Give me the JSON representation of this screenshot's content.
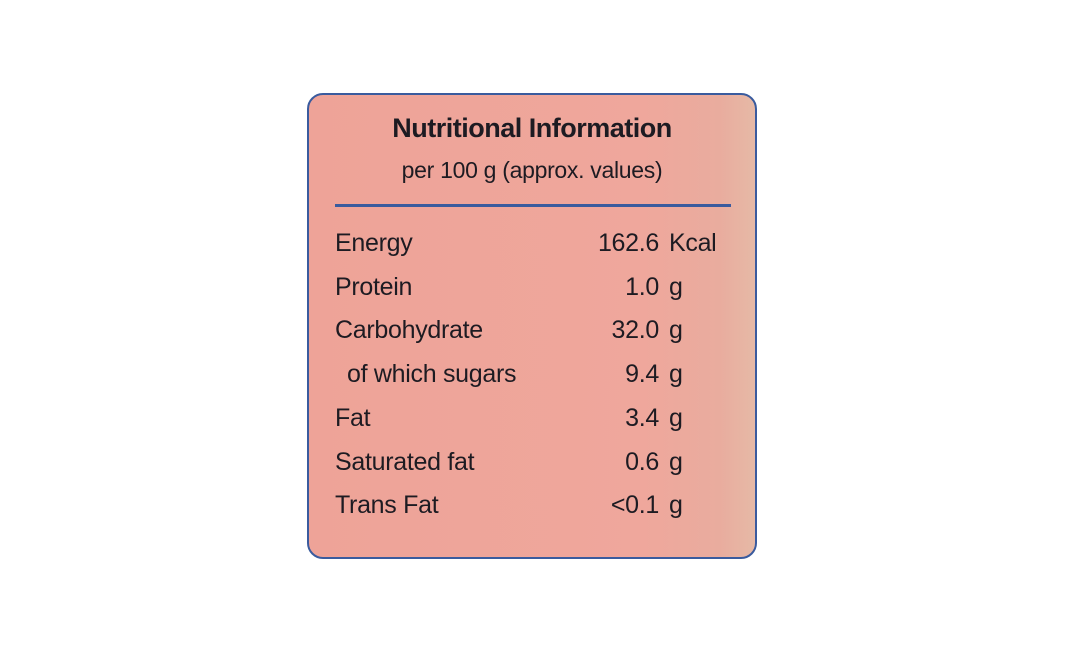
{
  "header": {
    "title": "Nutritional Information",
    "subtitle": "per 100 g (approx. values)"
  },
  "table": {
    "rows": [
      [
        "Energy",
        "162.6",
        "Kcal"
      ],
      [
        "Protein",
        "1.0",
        "g"
      ],
      [
        "Carbohydrate",
        "32.0",
        "g"
      ],
      [
        "of which sugars",
        "9.4",
        "g"
      ],
      [
        "Fat",
        "3.4",
        "g"
      ],
      [
        "Saturated fat",
        "0.6",
        "g"
      ],
      [
        "Trans Fat",
        "<0.1",
        "g"
      ]
    ]
  }
}
